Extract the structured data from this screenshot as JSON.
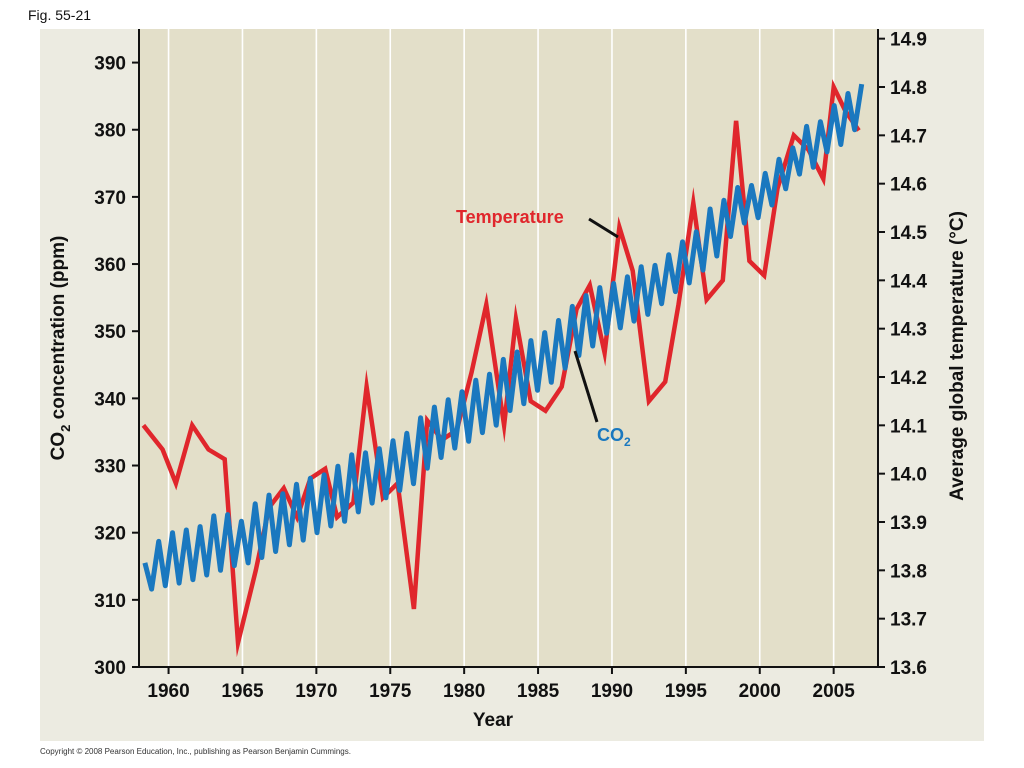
{
  "figure_label": "Fig. 55-21",
  "copyright": "Copyright © 2008 Pearson Education, Inc., publishing as Pearson Benjamin Cummings.",
  "colors": {
    "panel_bg": "#ecebe1",
    "plot_bg": "#e3dfc9",
    "temperature": "#e0262c",
    "co2": "#1a78bf",
    "gridline": "#ffffff",
    "axis": "#111111"
  },
  "chart_data": {
    "type": "line",
    "title": "",
    "grid": true,
    "legend": "direct labels",
    "x": {
      "label": "Year",
      "lim": [
        1958,
        2008
      ],
      "ticks": [
        1960,
        1965,
        1970,
        1975,
        1980,
        1985,
        1990,
        1995,
        2000,
        2005
      ]
    },
    "y_left": {
      "label_prefix": "CO",
      "label_sub": "2",
      "label_suffix": " concentration (ppm)",
      "lim": [
        300,
        395
      ],
      "ticks": [
        300,
        310,
        320,
        330,
        340,
        350,
        360,
        370,
        380,
        390
      ]
    },
    "y_right": {
      "label": "Average global temperature (°C)",
      "lim": [
        13.6,
        14.92
      ],
      "ticks": [
        "13.6",
        "13.7",
        "13.8",
        "13.9",
        "14.0",
        "14.1",
        "14.2",
        "14.3",
        "14.4",
        "14.5",
        "14.6",
        "14.7",
        "14.8",
        "14.9"
      ]
    },
    "series": [
      {
        "name": "Temperature",
        "axis": "right",
        "points": [
          [
            1958.3,
            14.1
          ],
          [
            1959.6,
            14.05
          ],
          [
            1960.5,
            13.98
          ],
          [
            1961.6,
            14.1
          ],
          [
            1962.7,
            14.05
          ],
          [
            1963.8,
            14.03
          ],
          [
            1964.7,
            13.65
          ],
          [
            1965.9,
            13.8
          ],
          [
            1966.8,
            13.93
          ],
          [
            1967.8,
            13.97
          ],
          [
            1968.7,
            13.91
          ],
          [
            1969.6,
            13.99
          ],
          [
            1970.6,
            14.01
          ],
          [
            1971.4,
            13.91
          ],
          [
            1972.5,
            13.94
          ],
          [
            1973.4,
            14.18
          ],
          [
            1974.5,
            13.95
          ],
          [
            1975.5,
            13.98
          ],
          [
            1976.6,
            13.72
          ],
          [
            1977.5,
            14.11
          ],
          [
            1978.5,
            14.07
          ],
          [
            1979.5,
            14.09
          ],
          [
            1980.5,
            14.21
          ],
          [
            1981.5,
            14.35
          ],
          [
            1982.7,
            14.1
          ],
          [
            1983.5,
            14.32
          ],
          [
            1984.5,
            14.15
          ],
          [
            1985.5,
            14.13
          ],
          [
            1986.6,
            14.18
          ],
          [
            1987.6,
            14.34
          ],
          [
            1988.5,
            14.39
          ],
          [
            1989.5,
            14.25
          ],
          [
            1990.5,
            14.51
          ],
          [
            1991.4,
            14.42
          ],
          [
            1992.5,
            14.15
          ],
          [
            1993.6,
            14.19
          ],
          [
            1994.5,
            14.35
          ],
          [
            1995.5,
            14.56
          ],
          [
            1996.4,
            14.36
          ],
          [
            1997.5,
            14.4
          ],
          [
            1998.4,
            14.73
          ],
          [
            1999.3,
            14.44
          ],
          [
            2000.3,
            14.41
          ],
          [
            2001.2,
            14.59
          ],
          [
            2002.3,
            14.7
          ],
          [
            2003.3,
            14.67
          ],
          [
            2004.3,
            14.61
          ],
          [
            2005.0,
            14.8
          ],
          [
            2005.8,
            14.75
          ],
          [
            2006.7,
            14.71
          ]
        ]
      },
      {
        "name": "CO",
        "name_sub": "2",
        "axis": "left",
        "start_year": 1958.4,
        "points": [
          [
            315.5,
            311.6
          ],
          [
            318.7,
            312.1
          ],
          [
            320.0,
            312.5
          ],
          [
            320.4,
            313.0
          ],
          [
            320.9,
            313.7
          ],
          [
            322.5,
            314.4
          ],
          [
            322.7,
            315.1
          ],
          [
            321.7,
            315.5
          ],
          [
            324.3,
            316.3
          ],
          [
            325.6,
            317.2
          ],
          [
            325.8,
            318.2
          ],
          [
            327.2,
            318.9
          ],
          [
            328.1,
            320.0
          ],
          [
            328.6,
            321.0
          ],
          [
            329.9,
            321.7
          ],
          [
            331.6,
            323.1
          ],
          [
            331.9,
            324.4
          ],
          [
            332.5,
            325.2
          ],
          [
            333.7,
            326.3
          ],
          [
            334.8,
            327.3
          ],
          [
            337.1,
            329.6
          ],
          [
            338.7,
            331.2
          ],
          [
            339.8,
            332.6
          ],
          [
            341.0,
            333.6
          ],
          [
            342.7,
            334.9
          ],
          [
            343.6,
            336.0
          ],
          [
            345.8,
            338.2
          ],
          [
            346.9,
            339.2
          ],
          [
            348.6,
            341.2
          ],
          [
            349.8,
            342.4
          ],
          [
            351.6,
            344.5
          ],
          [
            353.7,
            346.4
          ],
          [
            355.3,
            347.8
          ],
          [
            356.5,
            349.7
          ],
          [
            357.1,
            350.5
          ],
          [
            358.1,
            351.5
          ],
          [
            359.6,
            352.5
          ],
          [
            359.8,
            354.1
          ],
          [
            361.4,
            355.9
          ],
          [
            363.3,
            357.2
          ],
          [
            364.8,
            359.1
          ],
          [
            368.2,
            361.2
          ],
          [
            369.5,
            364.1
          ],
          [
            371.4,
            366.1
          ],
          [
            371.7,
            366.9
          ],
          [
            373.5,
            368.8
          ],
          [
            375.6,
            371.2
          ],
          [
            377.3,
            373.4
          ],
          [
            380.5,
            374.4
          ],
          [
            381.2,
            376.7
          ],
          [
            383.6,
            377.8
          ],
          [
            385.4,
            380.0
          ],
          [
            386.8,
            381.6
          ]
        ]
      }
    ],
    "annotations": {
      "temperature_label": "Temperature",
      "co2_label_prefix": "CO",
      "co2_label_sub": "2"
    }
  }
}
